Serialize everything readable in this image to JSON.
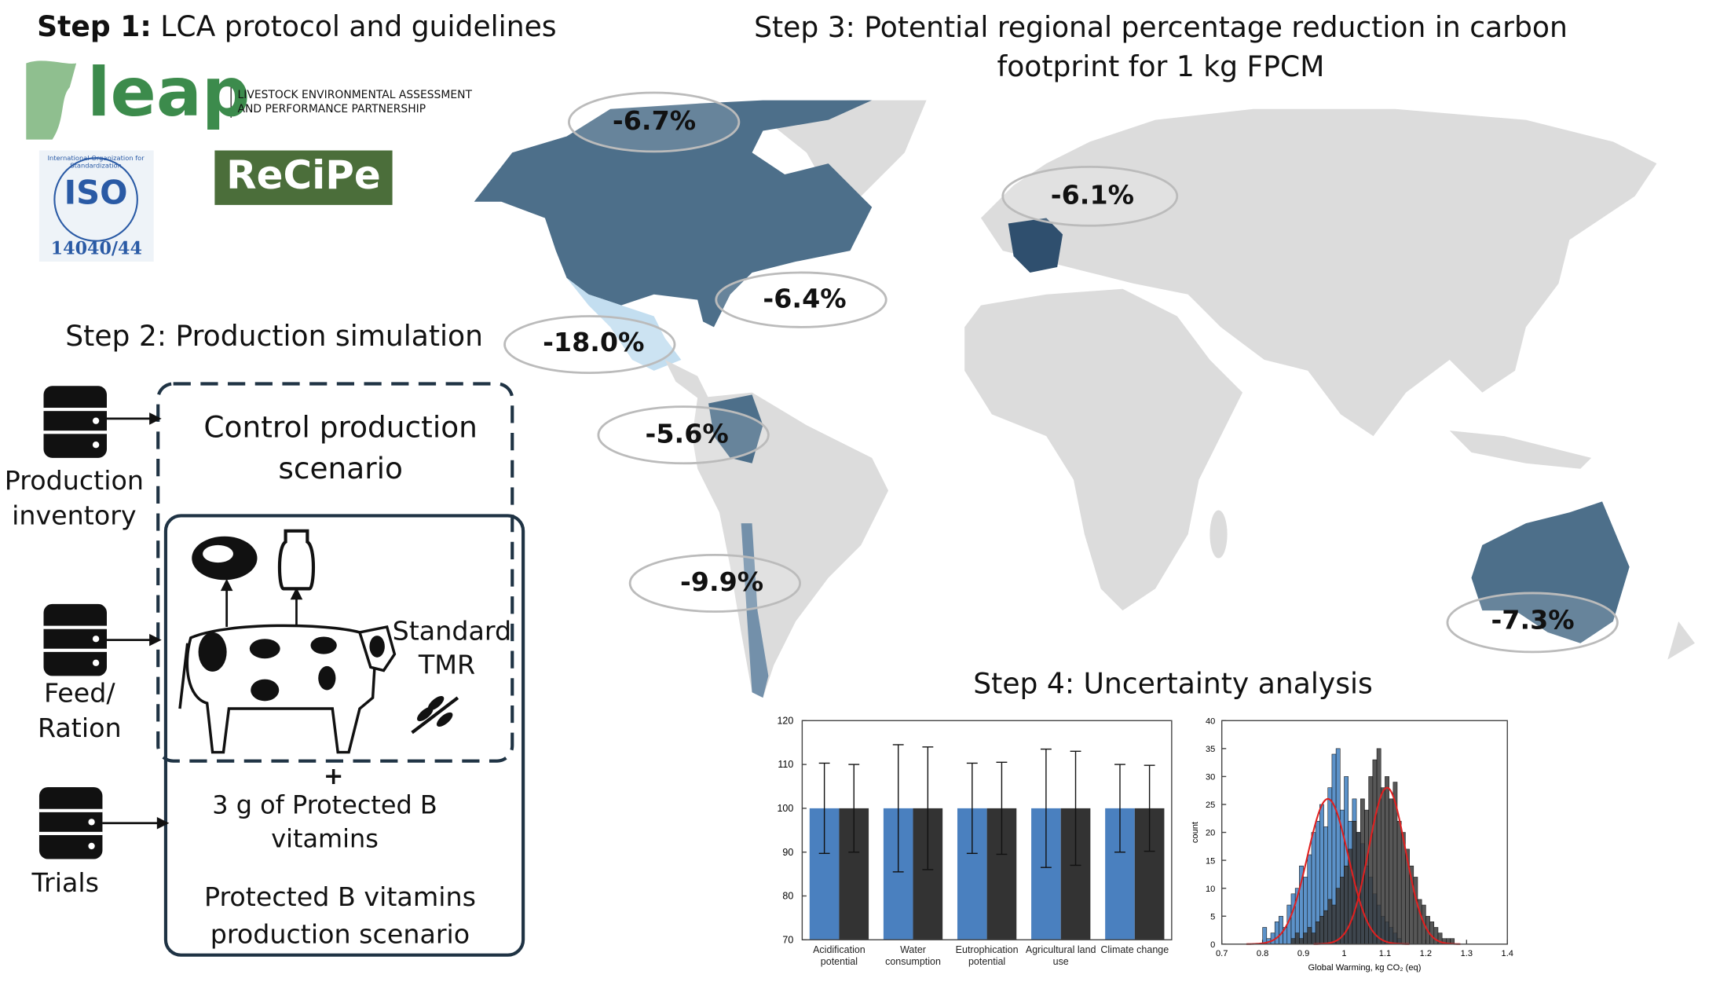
{
  "step1": {
    "title_bold": "Step 1:",
    "title": "LCA protocol and guidelines",
    "leap_logo": "leap",
    "leap_text": "LIVESTOCK ENVIRONMENTAL ASSESSMENT AND PERFORMANCE PARTNERSHIP",
    "iso_text": "ISO",
    "iso_ring": "International Organization for Standardization",
    "iso_number": "14040/44",
    "recipe": "ReCiPe"
  },
  "step2": {
    "title_bold": "Step 2:",
    "title": "Production simulation",
    "inputs": [
      "Production inventory",
      "Feed/ Ration",
      "Trials"
    ],
    "control": "Control production scenario",
    "standard": "Standard TMR",
    "plus": "+",
    "additive": "3 g of Protected B vitamins",
    "protected": "Protected B vitamins production scenario"
  },
  "step3": {
    "title_bold": "Step 3:",
    "title": "Potential regional percentage reduction in carbon footprint for 1 kg FPCM",
    "labels": [
      "-6.7%",
      "-6.1%",
      "-6.4%",
      "-18.0%",
      "-5.6%",
      "-9.9%",
      "-7.3%"
    ]
  },
  "step4": {
    "title_bold": "Step 4:",
    "title": "Uncertainty analysis"
  },
  "chart_data": [
    {
      "type": "bar",
      "categories": [
        "Acidification potential",
        "Water consumption",
        "Eutrophication potential",
        "Agricultural land use",
        "Climate change"
      ],
      "series": [
        {
          "color": "#4a80bf",
          "values": [
            100,
            100,
            100,
            100,
            100
          ],
          "errors": [
            10.3,
            14.5,
            10.3,
            13.5,
            10
          ]
        },
        {
          "color": "#333333",
          "values": [
            100,
            100,
            100,
            100,
            100
          ],
          "errors": [
            10,
            14,
            10.5,
            13,
            9.8
          ]
        }
      ],
      "ylim": [
        70,
        120
      ],
      "yticks": [
        70,
        80,
        90,
        100,
        110,
        120
      ]
    },
    {
      "type": "histogram",
      "x_label": "Global Warming, kg CO₂ (eq)",
      "y_label": "count",
      "bins": [
        0.8,
        0.81,
        0.82,
        0.83,
        0.84,
        0.85,
        0.86,
        0.87,
        0.88,
        0.89,
        0.9,
        0.91,
        0.92,
        0.93,
        0.94,
        0.95,
        0.96,
        0.97,
        0.98,
        0.99,
        1.0,
        1.01,
        1.02,
        1.03,
        1.04,
        1.05,
        1.06,
        1.07,
        1.08,
        1.09,
        1.1,
        1.11,
        1.12,
        1.13,
        1.14,
        1.15,
        1.16,
        1.17,
        1.18,
        1.19,
        1.2,
        1.21,
        1.22,
        1.23,
        1.24,
        1.25,
        1.26,
        1.27,
        1.28,
        1.29,
        1.3
      ],
      "series": [
        {
          "color": "#3f7fc0",
          "values": [
            3,
            1,
            2,
            4,
            5,
            3,
            7,
            9,
            10,
            14,
            12,
            16,
            20,
            22,
            25,
            21,
            28,
            34,
            35,
            24,
            30,
            22,
            26,
            20,
            18,
            14,
            12,
            9,
            7,
            5,
            4,
            3,
            2,
            1,
            0,
            0,
            0,
            0,
            0,
            0,
            0,
            0,
            0,
            0,
            0,
            0,
            0,
            0,
            0,
            0
          ]
        },
        {
          "color": "#3a3a3a",
          "values": [
            0,
            0,
            0,
            0,
            0,
            0,
            0,
            1,
            2,
            1,
            2,
            3,
            2,
            4,
            5,
            6,
            8,
            7,
            10,
            12,
            14,
            17,
            22,
            20,
            26,
            24,
            30,
            33,
            35,
            28,
            30,
            26,
            29,
            22,
            20,
            17,
            14,
            12,
            8,
            7,
            5,
            4,
            3,
            2,
            1,
            1,
            1,
            0,
            0,
            0
          ]
        }
      ],
      "fits": [
        {
          "color": "#e02020",
          "mean": 0.96,
          "sd": 0.05,
          "peak": 26
        },
        {
          "color": "#e02020",
          "mean": 1.105,
          "sd": 0.045,
          "peak": 28
        }
      ],
      "xlim": [
        0.7,
        1.4
      ],
      "xticks": [
        0.7,
        0.8,
        0.9,
        1,
        1.1,
        1.2,
        1.3,
        1.4
      ],
      "ylim": [
        0,
        40
      ],
      "yticks": [
        0,
        5,
        10,
        15,
        20,
        25,
        30,
        35,
        40
      ]
    }
  ]
}
